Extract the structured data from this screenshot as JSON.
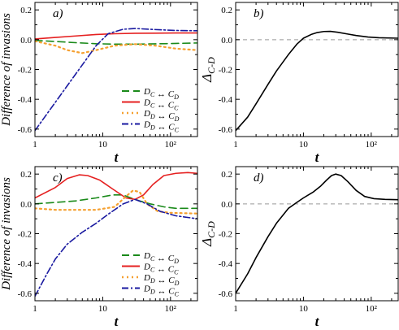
{
  "colors": {
    "green": "#1a8a1a",
    "red": "#e52020",
    "orange": "#f5a030",
    "blue": "#1a1aa0",
    "ref": "#999999",
    "black": "#000000"
  },
  "chart_data": [
    {
      "id": "a",
      "type": "line",
      "panel_label": "a)",
      "xlabel": "t",
      "ylabel": "Difference of invasions",
      "xscale": "log",
      "xlim": [
        1,
        250
      ],
      "ylim": [
        -0.65,
        0.25
      ],
      "xticks": [
        {
          "v": 1,
          "label": "1"
        },
        {
          "v": 10,
          "label": "10"
        },
        {
          "v": 100,
          "label": "10²"
        }
      ],
      "yticks": [
        {
          "v": 0.2,
          "label": "0.2"
        },
        {
          "v": 0.0,
          "label": "0.0"
        },
        {
          "v": -0.2,
          "label": "-0.2"
        },
        {
          "v": -0.4,
          "label": "-0.4"
        },
        {
          "v": -0.6,
          "label": "-0.6"
        }
      ],
      "legend_position": "bottom-right",
      "series": [
        {
          "name": "D_C ↔ C_D",
          "color_key": "green",
          "dash": "9 5",
          "x": [
            1,
            2,
            4,
            8,
            15,
            30,
            60,
            120,
            250
          ],
          "y": [
            -0.005,
            -0.012,
            -0.02,
            -0.027,
            -0.03,
            -0.03,
            -0.028,
            -0.025,
            -0.022
          ]
        },
        {
          "name": "D_C ↔ C_C",
          "color_key": "red",
          "dash": "",
          "x": [
            1,
            2,
            4,
            8,
            15,
            30,
            60,
            120,
            250
          ],
          "y": [
            0.005,
            0.015,
            0.025,
            0.035,
            0.04,
            0.043,
            0.044,
            0.045,
            0.045
          ]
        },
        {
          "name": "D_D ↔ C_D",
          "color_key": "orange",
          "dash": "2 4",
          "x": [
            1,
            2,
            3,
            5,
            8,
            15,
            30,
            60,
            120,
            250
          ],
          "y": [
            -0.01,
            -0.04,
            -0.07,
            -0.09,
            -0.07,
            -0.04,
            -0.03,
            -0.04,
            -0.06,
            -0.07
          ]
        },
        {
          "name": "D_D ↔ C_C",
          "color_key": "blue",
          "dash": "8 3 2 3",
          "x": [
            1,
            2,
            4,
            8,
            12,
            20,
            30,
            60,
            120,
            250
          ],
          "y": [
            -0.61,
            -0.42,
            -0.23,
            -0.04,
            0.04,
            0.07,
            0.075,
            0.068,
            0.062,
            0.06
          ]
        }
      ]
    },
    {
      "id": "b",
      "type": "line",
      "panel_label": "b)",
      "xlabel": "t",
      "ylabel": "Δ",
      "ylabel_sub": "C-D",
      "xscale": "log",
      "xlim": [
        1,
        250
      ],
      "ylim": [
        -0.65,
        0.25
      ],
      "xticks": [
        {
          "v": 1,
          "label": "1"
        },
        {
          "v": 10,
          "label": "10"
        },
        {
          "v": 100,
          "label": "10²"
        }
      ],
      "yticks": [
        {
          "v": 0.2,
          "label": "0.2"
        },
        {
          "v": 0.0,
          "label": "0.0"
        },
        {
          "v": -0.2,
          "label": "-0.2"
        },
        {
          "v": -0.4,
          "label": "-0.4"
        },
        {
          "v": -0.6,
          "label": "-0.6"
        }
      ],
      "reference_line": 0,
      "series": [
        {
          "color_key": "black",
          "dash": "",
          "x": [
            1,
            1.5,
            2,
            3,
            4,
            6,
            8,
            10,
            13,
            16,
            20,
            25,
            32,
            45,
            60,
            90,
            130,
            250
          ],
          "y": [
            -0.61,
            -0.52,
            -0.43,
            -0.3,
            -0.21,
            -0.1,
            -0.03,
            0.01,
            0.035,
            0.048,
            0.055,
            0.056,
            0.05,
            0.038,
            0.028,
            0.018,
            0.013,
            0.01
          ]
        }
      ]
    },
    {
      "id": "c",
      "type": "line",
      "panel_label": "c)",
      "xlabel": "t",
      "ylabel": "Difference of invasions",
      "xscale": "log",
      "xlim": [
        1,
        250
      ],
      "ylim": [
        -0.65,
        0.25
      ],
      "xticks": [
        {
          "v": 1,
          "label": "1"
        },
        {
          "v": 10,
          "label": "10"
        },
        {
          "v": 100,
          "label": "10²"
        }
      ],
      "yticks": [
        {
          "v": 0.2,
          "label": "0.2"
        },
        {
          "v": 0.0,
          "label": "0.0"
        },
        {
          "v": -0.2,
          "label": "-0.2"
        },
        {
          "v": -0.4,
          "label": "-0.4"
        },
        {
          "v": -0.6,
          "label": "-0.6"
        }
      ],
      "legend_position": "bottom-right",
      "series": [
        {
          "name": "D_C ↔ C_D",
          "color_key": "green",
          "dash": "9 5",
          "x": [
            1,
            2,
            4,
            8,
            14,
            20,
            26,
            35,
            50,
            80,
            120,
            250
          ],
          "y": [
            0.0,
            0.01,
            0.02,
            0.04,
            0.06,
            0.06,
            0.04,
            0.02,
            0.0,
            -0.02,
            -0.03,
            -0.03
          ]
        },
        {
          "name": "D_C ↔ C_C",
          "color_key": "red",
          "dash": "",
          "x": [
            1,
            2,
            3,
            4.5,
            6,
            9,
            14,
            22,
            30,
            40,
            55,
            80,
            120,
            180,
            250
          ],
          "y": [
            0.04,
            0.11,
            0.17,
            0.195,
            0.19,
            0.16,
            0.1,
            0.04,
            0.03,
            0.06,
            0.13,
            0.19,
            0.205,
            0.21,
            0.205
          ]
        },
        {
          "name": "D_D ↔ C_D",
          "color_key": "orange",
          "dash": "2 4",
          "x": [
            1,
            2,
            4,
            8,
            15,
            22,
            28,
            35,
            45,
            65,
            100,
            250
          ],
          "y": [
            -0.03,
            -0.04,
            -0.04,
            -0.04,
            -0.02,
            0.05,
            0.09,
            0.08,
            0.0,
            -0.05,
            -0.06,
            -0.065
          ]
        },
        {
          "name": "D_D ↔ C_C",
          "color_key": "blue",
          "dash": "8 3 2 3",
          "x": [
            1,
            1.5,
            2,
            3,
            5,
            8,
            12,
            20,
            30,
            45,
            70,
            120,
            250
          ],
          "y": [
            -0.62,
            -0.47,
            -0.37,
            -0.27,
            -0.19,
            -0.13,
            -0.07,
            0.0,
            0.03,
            0.0,
            -0.05,
            -0.08,
            -0.1
          ]
        }
      ]
    },
    {
      "id": "d",
      "type": "line",
      "panel_label": "d)",
      "xlabel": "t",
      "ylabel": "Δ",
      "ylabel_sub": "C-D",
      "xscale": "log",
      "xlim": [
        1,
        250
      ],
      "ylim": [
        -0.65,
        0.25
      ],
      "xticks": [
        {
          "v": 1,
          "label": "1"
        },
        {
          "v": 10,
          "label": "10"
        },
        {
          "v": 100,
          "label": "10²"
        }
      ],
      "yticks": [
        {
          "v": 0.2,
          "label": "0.2"
        },
        {
          "v": 0.0,
          "label": "0.0"
        },
        {
          "v": -0.2,
          "label": "-0.2"
        },
        {
          "v": -0.4,
          "label": "-0.4"
        },
        {
          "v": -0.6,
          "label": "-0.6"
        }
      ],
      "reference_line": 0,
      "series": [
        {
          "color_key": "black",
          "dash": "",
          "x": [
            1,
            1.5,
            2,
            3,
            4,
            6,
            8,
            10,
            14,
            18,
            22,
            26,
            30,
            36,
            45,
            60,
            80,
            110,
            160,
            250
          ],
          "y": [
            -0.6,
            -0.47,
            -0.36,
            -0.22,
            -0.13,
            -0.03,
            0.01,
            0.04,
            0.08,
            0.12,
            0.16,
            0.19,
            0.2,
            0.19,
            0.15,
            0.09,
            0.05,
            0.035,
            0.03,
            0.028
          ]
        }
      ]
    }
  ]
}
